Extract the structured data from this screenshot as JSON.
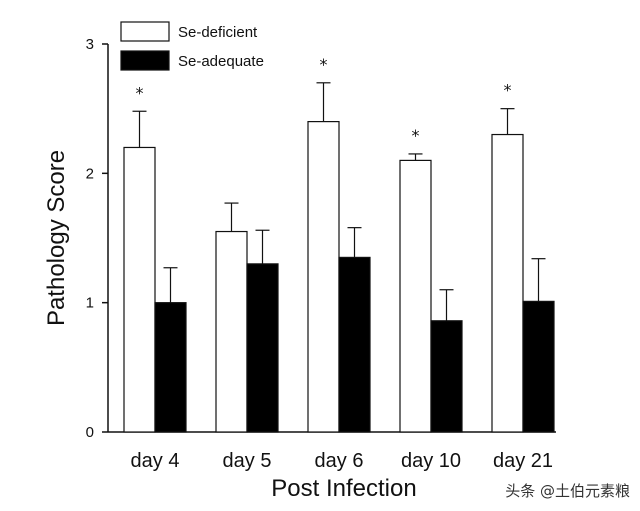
{
  "chart_data": {
    "type": "bar",
    "categories": [
      "day 4",
      "day 5",
      "day 6",
      "day 10",
      "day 21"
    ],
    "series": [
      {
        "name": "Se-deficient",
        "color": "#ffffff",
        "values": [
          2.2,
          1.55,
          2.4,
          2.1,
          2.3
        ],
        "errors": [
          0.28,
          0.22,
          0.3,
          0.05,
          0.2
        ],
        "significant": [
          true,
          false,
          true,
          true,
          true
        ]
      },
      {
        "name": "Se-adequate",
        "color": "#000000",
        "values": [
          1.0,
          1.3,
          1.35,
          0.86,
          1.01
        ],
        "errors": [
          0.27,
          0.26,
          0.23,
          0.24,
          0.33
        ],
        "significant": [
          false,
          false,
          false,
          false,
          false
        ]
      }
    ],
    "xlabel": "Post Infection",
    "ylabel": "Pathology Score",
    "ylim": [
      0,
      3
    ],
    "yticks": [
      "0",
      "1",
      "2",
      "3"
    ],
    "significance_marker": "*",
    "legend_position": "top-left",
    "grid": false
  },
  "watermark": "头条 @土伯元素粮"
}
